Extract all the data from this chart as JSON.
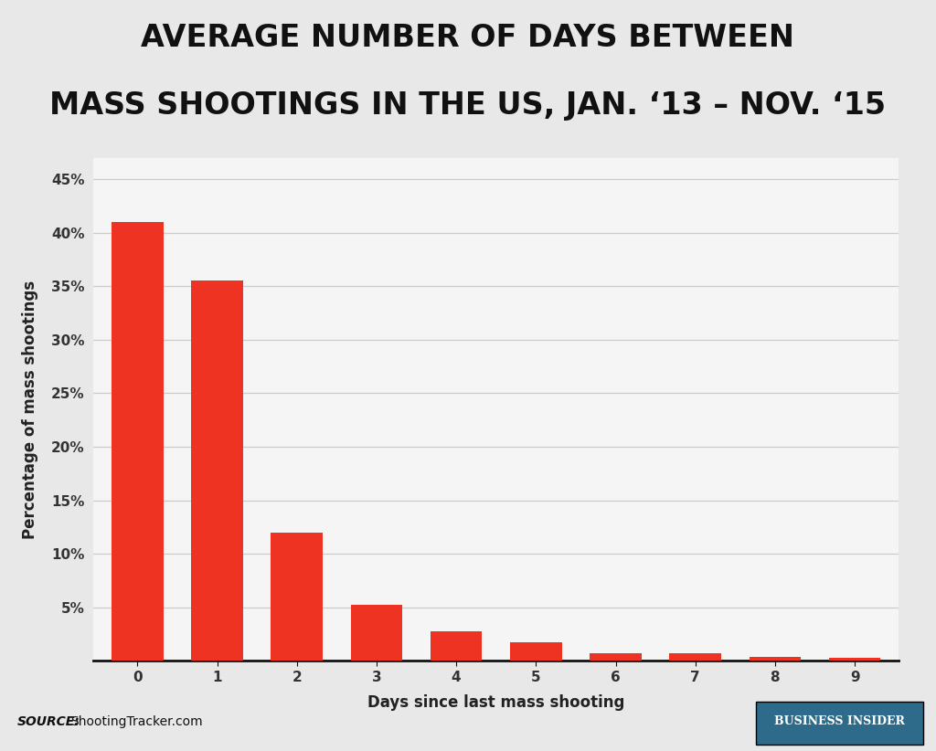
{
  "title_line1": "AVERAGE NUMBER OF DAYS BETWEEN",
  "title_line2": "MASS SHOOTINGS IN THE US, JAN. ‘13 – NOV. ‘15",
  "categories": [
    0,
    1,
    2,
    3,
    4,
    5,
    6,
    7,
    8,
    9
  ],
  "values": [
    41.0,
    35.5,
    12.0,
    5.2,
    2.8,
    1.7,
    0.7,
    0.75,
    0.35,
    0.25
  ],
  "bar_color": "#ee3322",
  "xlabel": "Days since last mass shooting",
  "ylabel": "Percentage of mass shootings",
  "ylim": [
    0,
    47
  ],
  "yticks": [
    0,
    5,
    10,
    15,
    20,
    25,
    30,
    35,
    40,
    45
  ],
  "ytick_labels": [
    "",
    "5%",
    "10%",
    "15%",
    "20%",
    "25%",
    "30%",
    "35%",
    "40%",
    "45%"
  ],
  "background_color": "#e8e8e8",
  "plot_bg_color": "#ffffff",
  "chart_area_bg": "#f5f5f5",
  "footer_bg_color": "#c8c8c8",
  "source_bold": "SOURCE:",
  "source_text": " ShootingTracker.com",
  "bi_label": "BUSINESS INSIDER",
  "bi_bg_color": "#2e6b8a",
  "title_fontsize": 24,
  "axis_label_fontsize": 12,
  "tick_fontsize": 11,
  "source_fontsize": 10,
  "grid_color": "#cccccc"
}
